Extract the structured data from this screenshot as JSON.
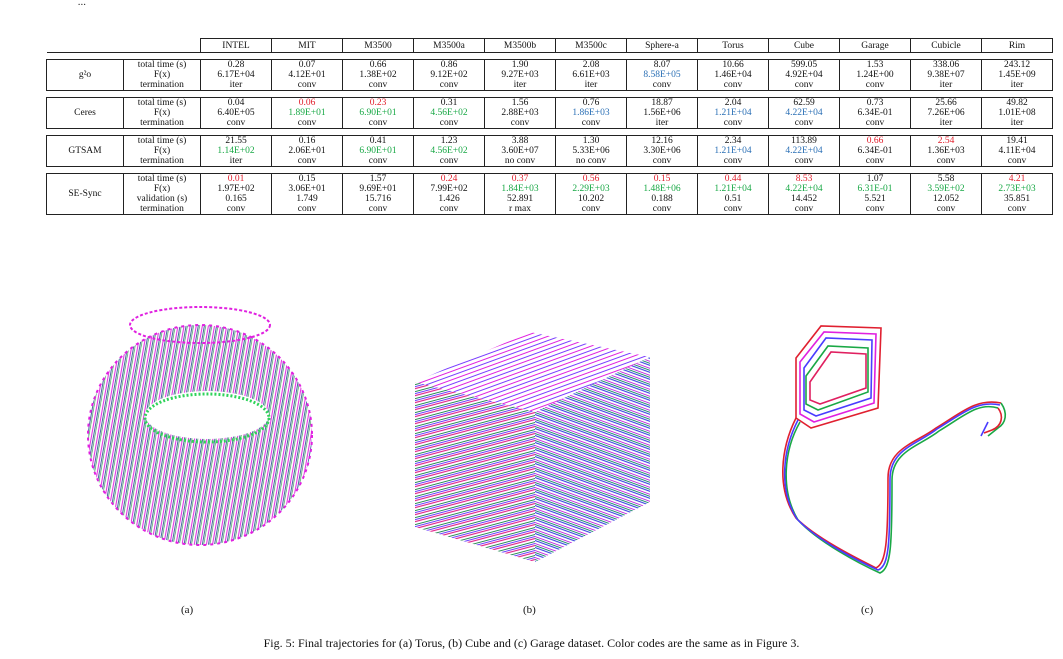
{
  "top_text": "...",
  "table": {
    "columns": [
      "INTEL",
      "MIT",
      "M3500",
      "M3500a",
      "M3500b",
      "M3500c",
      "Sphere-a",
      "Torus",
      "Cube",
      "Garage",
      "Cubicle",
      "Rim"
    ],
    "methods": [
      {
        "name": "g²o",
        "rows": [
          {
            "label": "total time (s)",
            "cells": [
              [
                "0.28",
                ""
              ],
              [
                "0.07",
                ""
              ],
              [
                "0.66",
                ""
              ],
              [
                "0.86",
                ""
              ],
              [
                "1.90",
                ""
              ],
              [
                "2.08",
                ""
              ],
              [
                "8.07",
                ""
              ],
              [
                "10.66",
                ""
              ],
              [
                "599.05",
                ""
              ],
              [
                "1.53",
                ""
              ],
              [
                "338.06",
                ""
              ],
              [
                "243.12",
                ""
              ]
            ]
          },
          {
            "label": "F(x)",
            "cells": [
              [
                "6.17E+04",
                ""
              ],
              [
                "4.12E+01",
                ""
              ],
              [
                "1.38E+02",
                ""
              ],
              [
                "9.12E+02",
                ""
              ],
              [
                "9.27E+03",
                ""
              ],
              [
                "6.61E+03",
                ""
              ],
              [
                "8.58E+05",
                "blue"
              ],
              [
                "1.46E+04",
                ""
              ],
              [
                "4.92E+04",
                ""
              ],
              [
                "1.24E+00",
                ""
              ],
              [
                "9.38E+07",
                ""
              ],
              [
                "1.45E+09",
                ""
              ]
            ]
          },
          {
            "label": "termination",
            "cells": [
              [
                "iter",
                ""
              ],
              [
                "conv",
                ""
              ],
              [
                "conv",
                ""
              ],
              [
                "conv",
                ""
              ],
              [
                "iter",
                ""
              ],
              [
                "iter",
                ""
              ],
              [
                "conv",
                ""
              ],
              [
                "conv",
                ""
              ],
              [
                "conv",
                ""
              ],
              [
                "conv",
                ""
              ],
              [
                "iter",
                ""
              ],
              [
                "iter",
                ""
              ]
            ]
          }
        ]
      },
      {
        "name": "Ceres",
        "rows": [
          {
            "label": "total time (s)",
            "cells": [
              [
                "0.04",
                ""
              ],
              [
                "0.06",
                "red"
              ],
              [
                "0.23",
                "red"
              ],
              [
                "0.31",
                ""
              ],
              [
                "1.56",
                ""
              ],
              [
                "0.76",
                ""
              ],
              [
                "18.87",
                ""
              ],
              [
                "2.04",
                ""
              ],
              [
                "62.59",
                ""
              ],
              [
                "0.73",
                ""
              ],
              [
                "25.66",
                ""
              ],
              [
                "49.82",
                ""
              ]
            ]
          },
          {
            "label": "F(x)",
            "cells": [
              [
                "6.40E+05",
                ""
              ],
              [
                "1.89E+01",
                "green"
              ],
              [
                "6.90E+01",
                "green"
              ],
              [
                "4.56E+02",
                "green"
              ],
              [
                "2.88E+03",
                ""
              ],
              [
                "1.86E+03",
                "blue"
              ],
              [
                "1.56E+06",
                ""
              ],
              [
                "1.21E+04",
                "blue"
              ],
              [
                "4.22E+04",
                "blue"
              ],
              [
                "6.34E-01",
                ""
              ],
              [
                "7.26E+06",
                ""
              ],
              [
                "1.01E+08",
                ""
              ]
            ]
          },
          {
            "label": "termination",
            "cells": [
              [
                "conv",
                ""
              ],
              [
                "conv",
                ""
              ],
              [
                "conv",
                ""
              ],
              [
                "conv",
                ""
              ],
              [
                "conv",
                ""
              ],
              [
                "conv",
                ""
              ],
              [
                "iter",
                ""
              ],
              [
                "conv",
                ""
              ],
              [
                "conv",
                ""
              ],
              [
                "conv",
                ""
              ],
              [
                "iter",
                ""
              ],
              [
                "iter",
                ""
              ]
            ]
          }
        ]
      },
      {
        "name": "GTSAM",
        "rows": [
          {
            "label": "total time (s)",
            "cells": [
              [
                "21.55",
                ""
              ],
              [
                "0.16",
                ""
              ],
              [
                "0.41",
                ""
              ],
              [
                "1.23",
                ""
              ],
              [
                "3.88",
                ""
              ],
              [
                "1.30",
                ""
              ],
              [
                "12.16",
                ""
              ],
              [
                "2.34",
                ""
              ],
              [
                "113.89",
                ""
              ],
              [
                "0.66",
                "red"
              ],
              [
                "2.54",
                "red"
              ],
              [
                "19.41",
                ""
              ]
            ]
          },
          {
            "label": "F(x)",
            "cells": [
              [
                "1.14E+02",
                "green"
              ],
              [
                "2.06E+01",
                ""
              ],
              [
                "6.90E+01",
                "green"
              ],
              [
                "4.56E+02",
                "green"
              ],
              [
                "3.60E+07",
                ""
              ],
              [
                "5.33E+06",
                ""
              ],
              [
                "3.30E+06",
                ""
              ],
              [
                "1.21E+04",
                "blue"
              ],
              [
                "4.22E+04",
                "blue"
              ],
              [
                "6.34E-01",
                ""
              ],
              [
                "1.36E+03",
                ""
              ],
              [
                "4.11E+04",
                ""
              ]
            ]
          },
          {
            "label": "termination",
            "cells": [
              [
                "iter",
                ""
              ],
              [
                "conv",
                ""
              ],
              [
                "conv",
                ""
              ],
              [
                "conv",
                ""
              ],
              [
                "no conv",
                ""
              ],
              [
                "no conv",
                ""
              ],
              [
                "conv",
                ""
              ],
              [
                "conv",
                ""
              ],
              [
                "conv",
                ""
              ],
              [
                "conv",
                ""
              ],
              [
                "conv",
                ""
              ],
              [
                "conv",
                ""
              ]
            ]
          }
        ]
      },
      {
        "name": "SE-Sync",
        "rows": [
          {
            "label": "total time (s)",
            "cells": [
              [
                "0.01",
                "red"
              ],
              [
                "0.15",
                ""
              ],
              [
                "1.57",
                ""
              ],
              [
                "0.24",
                "red"
              ],
              [
                "0.37",
                "red"
              ],
              [
                "0.56",
                "red"
              ],
              [
                "0.15",
                "red"
              ],
              [
                "0.44",
                "red"
              ],
              [
                "8.53",
                "red"
              ],
              [
                "1.07",
                ""
              ],
              [
                "5.58",
                ""
              ],
              [
                "4.21",
                "red"
              ]
            ]
          },
          {
            "label": "F(x)",
            "cells": [
              [
                "1.97E+02",
                ""
              ],
              [
                "3.06E+01",
                ""
              ],
              [
                "9.69E+01",
                ""
              ],
              [
                "7.99E+02",
                ""
              ],
              [
                "1.84E+03",
                "green"
              ],
              [
                "2.29E+03",
                "green"
              ],
              [
                "1.48E+06",
                "green"
              ],
              [
                "1.21E+04",
                "green"
              ],
              [
                "4.22E+04",
                "green"
              ],
              [
                "6.31E-01",
                "green"
              ],
              [
                "3.59E+02",
                "green"
              ],
              [
                "2.73E+03",
                "green"
              ]
            ]
          },
          {
            "label": "validation (s)",
            "cells": [
              [
                "0.165",
                ""
              ],
              [
                "1.749",
                ""
              ],
              [
                "15.716",
                ""
              ],
              [
                "1.426",
                ""
              ],
              [
                "52.891",
                ""
              ],
              [
                "10.202",
                ""
              ],
              [
                "0.188",
                ""
              ],
              [
                "0.51",
                ""
              ],
              [
                "14.452",
                ""
              ],
              [
                "5.521",
                ""
              ],
              [
                "12.052",
                ""
              ],
              [
                "35.851",
                ""
              ]
            ]
          },
          {
            "label": "termination",
            "cells": [
              [
                "conv",
                ""
              ],
              [
                "conv",
                ""
              ],
              [
                "conv",
                ""
              ],
              [
                "conv",
                ""
              ],
              [
                "r max",
                ""
              ],
              [
                "conv",
                ""
              ],
              [
                "conv",
                ""
              ],
              [
                "conv",
                ""
              ],
              [
                "conv",
                ""
              ],
              [
                "conv",
                ""
              ],
              [
                "conv",
                ""
              ],
              [
                "conv",
                ""
              ]
            ]
          }
        ]
      }
    ]
  },
  "colors": {
    "red": "#e11d2a",
    "green": "#18a845",
    "blue": "#2a6fb5",
    "magenta": "#e020e0",
    "trajectory_purple": "#7a3cff"
  },
  "panels": [
    {
      "label": "(a)",
      "content": "torus-trajectory-image"
    },
    {
      "label": "(b)",
      "content": "cube-trajectory-image"
    },
    {
      "label": "(c)",
      "content": "garage-trajectory-image"
    }
  ],
  "caption": "Fig. 5: Final trajectories for (a) Torus, (b) Cube and (c) Garage dataset. Color codes are the same as in Figure 3."
}
